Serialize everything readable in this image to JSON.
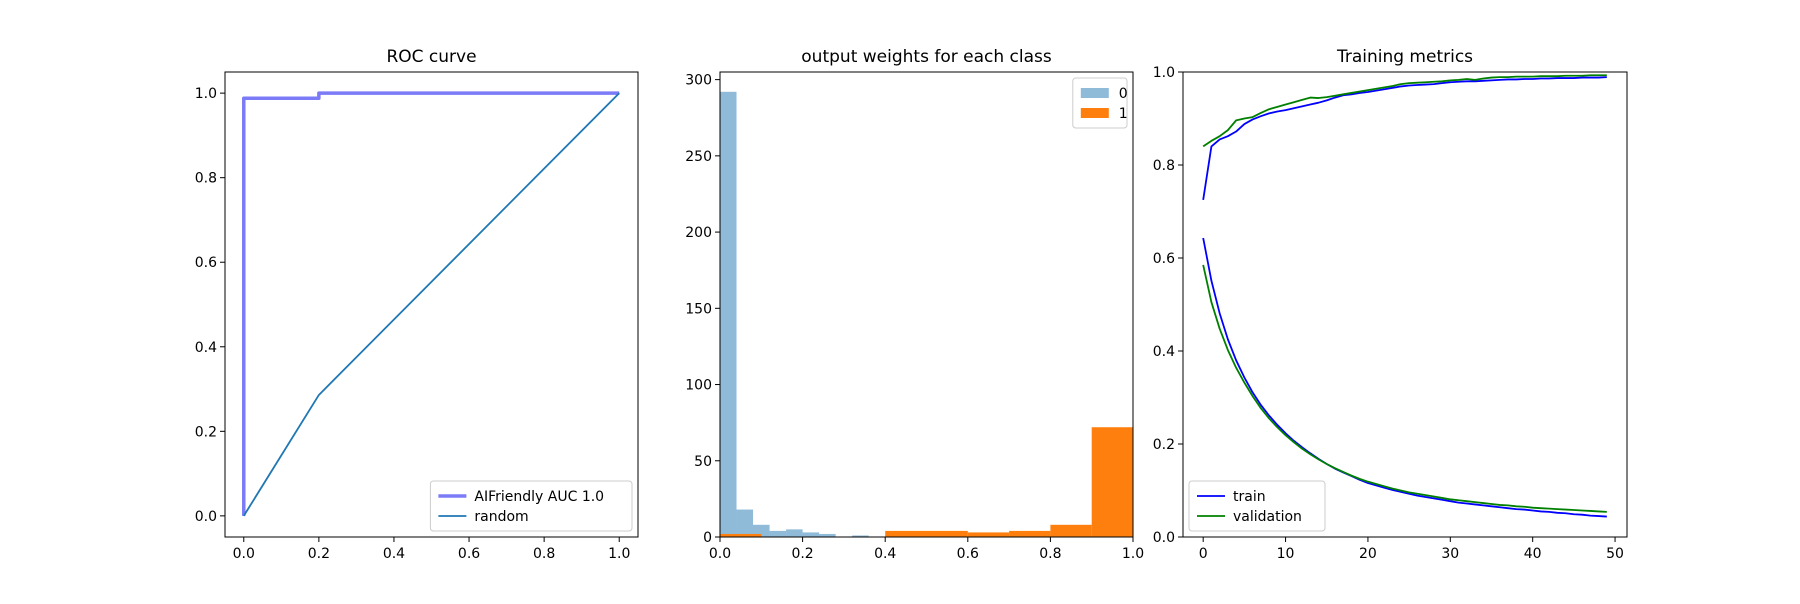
{
  "chart_data": [
    {
      "type": "line",
      "title": "ROC curve",
      "xlabel": "",
      "ylabel": "",
      "xlim": [
        -0.05,
        1.05
      ],
      "ylim": [
        -0.05,
        1.05
      ],
      "xticks": [
        0.0,
        0.2,
        0.4,
        0.6,
        0.8,
        1.0
      ],
      "yticks": [
        0.0,
        0.2,
        0.4,
        0.6,
        0.8,
        1.0
      ],
      "tick_labels_x": [
        "0.0",
        "0.2",
        "0.4",
        "0.6",
        "0.8",
        "1.0"
      ],
      "tick_labels_y": [
        "0.0",
        "0.2",
        "0.4",
        "0.6",
        "0.8",
        "1.0"
      ],
      "grid": false,
      "legend": "lower right",
      "series": [
        {
          "name": "AIFriendly AUC 1.0",
          "color": "#7b7bf7",
          "x": [
            0.0,
            0.0,
            0.0,
            0.2,
            0.2,
            1.0
          ],
          "y": [
            0.0,
            0.988,
            0.988,
            0.988,
            1.0,
            1.0
          ]
        },
        {
          "name": "random",
          "color": "#1f77b4",
          "x": [
            0.0,
            0.2,
            1.0
          ],
          "y": [
            0.0,
            0.286,
            1.0
          ]
        }
      ]
    },
    {
      "type": "bar",
      "title": "output weights for each class",
      "xlabel": "",
      "ylabel": "",
      "xlim": [
        0.0,
        1.0
      ],
      "ylim": [
        0,
        305
      ],
      "xticks": [
        0.0,
        0.2,
        0.4,
        0.6,
        0.8,
        1.0
      ],
      "yticks": [
        0,
        50,
        100,
        150,
        200,
        250,
        300
      ],
      "tick_labels_x": [
        "0.0",
        "0.2",
        "0.4",
        "0.6",
        "0.8",
        "1.0"
      ],
      "tick_labels_y": [
        "0",
        "50",
        "100",
        "150",
        "200",
        "250",
        "300"
      ],
      "grid": false,
      "legend": "upper right",
      "series": [
        {
          "name": "0",
          "color": "#1f77b4",
          "alpha": 0.5,
          "bin_edges": [
            0.0,
            0.04,
            0.08,
            0.12,
            0.16,
            0.2,
            0.24,
            0.28,
            0.32,
            0.36,
            0.4
          ],
          "counts": [
            292,
            18,
            8,
            4,
            5,
            3,
            2,
            0,
            1,
            0
          ]
        },
        {
          "name": "1",
          "color": "#ff7f0e",
          "alpha": 1.0,
          "bin_edges": [
            0.0,
            0.1,
            0.2,
            0.3,
            0.4,
            0.5,
            0.6,
            0.7,
            0.8,
            0.9,
            1.0
          ],
          "counts": [
            2,
            0,
            0,
            0,
            4,
            4,
            3,
            4,
            8,
            72
          ]
        }
      ]
    },
    {
      "type": "line",
      "title": "Training metrics",
      "xlabel": "",
      "ylabel": "",
      "xlim": [
        -2.45,
        51.45
      ],
      "ylim": [
        0.0,
        1.0
      ],
      "xticks": [
        0,
        10,
        20,
        30,
        40,
        50
      ],
      "yticks": [
        0.0,
        0.2,
        0.4,
        0.6,
        0.8,
        1.0
      ],
      "tick_labels_x": [
        "0",
        "10",
        "20",
        "30",
        "40",
        "50"
      ],
      "tick_labels_y": [
        "0.0",
        "0.2",
        "0.4",
        "0.6",
        "0.8",
        "1.0"
      ],
      "grid": false,
      "legend": "lower left",
      "legend_entries": [
        {
          "name": "train",
          "color": "#0000ff"
        },
        {
          "name": "validation",
          "color": "#008000"
        }
      ],
      "series": [
        {
          "name": "train",
          "color": "#0000ff",
          "x": [
            0,
            1,
            2,
            3,
            4,
            5,
            6,
            7,
            8,
            9,
            10,
            11,
            12,
            13,
            14,
            15,
            16,
            17,
            18,
            19,
            20,
            21,
            22,
            23,
            24,
            25,
            26,
            27,
            28,
            29,
            30,
            31,
            32,
            33,
            34,
            35,
            36,
            37,
            38,
            39,
            40,
            41,
            42,
            43,
            44,
            45,
            46,
            47,
            48,
            49
          ],
          "y": [
            0.725,
            0.84,
            0.855,
            0.862,
            0.872,
            0.888,
            0.898,
            0.905,
            0.911,
            0.915,
            0.918,
            0.922,
            0.926,
            0.93,
            0.934,
            0.939,
            0.945,
            0.95,
            0.952,
            0.955,
            0.957,
            0.96,
            0.963,
            0.966,
            0.969,
            0.971,
            0.972,
            0.973,
            0.974,
            0.976,
            0.978,
            0.979,
            0.98,
            0.98,
            0.981,
            0.982,
            0.983,
            0.984,
            0.984,
            0.985,
            0.985,
            0.986,
            0.986,
            0.987,
            0.987,
            0.987,
            0.988,
            0.988,
            0.988,
            0.989
          ]
        },
        {
          "name": "validation",
          "color": "#008000",
          "x": [
            0,
            1,
            2,
            3,
            4,
            5,
            6,
            7,
            8,
            9,
            10,
            11,
            12,
            13,
            14,
            15,
            16,
            17,
            18,
            19,
            20,
            21,
            22,
            23,
            24,
            25,
            26,
            27,
            28,
            29,
            30,
            31,
            32,
            33,
            34,
            35,
            36,
            37,
            38,
            39,
            40,
            41,
            42,
            43,
            44,
            45,
            46,
            47,
            48,
            49
          ],
          "y": [
            0.84,
            0.852,
            0.862,
            0.875,
            0.896,
            0.9,
            0.903,
            0.912,
            0.92,
            0.925,
            0.93,
            0.935,
            0.94,
            0.945,
            0.944,
            0.946,
            0.949,
            0.952,
            0.955,
            0.958,
            0.961,
            0.964,
            0.967,
            0.97,
            0.974,
            0.976,
            0.977,
            0.978,
            0.979,
            0.98,
            0.982,
            0.983,
            0.985,
            0.983,
            0.986,
            0.988,
            0.989,
            0.989,
            0.99,
            0.99,
            0.99,
            0.991,
            0.991,
            0.991,
            0.992,
            0.992,
            0.992,
            0.993,
            0.993,
            0.993
          ]
        },
        {
          "name": "train",
          "color": "#0000ff",
          "x": [
            0,
            1,
            2,
            3,
            4,
            5,
            6,
            7,
            8,
            9,
            10,
            11,
            12,
            13,
            14,
            15,
            16,
            17,
            18,
            19,
            20,
            21,
            22,
            23,
            24,
            25,
            26,
            27,
            28,
            29,
            30,
            31,
            32,
            33,
            34,
            35,
            36,
            37,
            38,
            39,
            40,
            41,
            42,
            43,
            44,
            45,
            46,
            47,
            48,
            49
          ],
          "y": [
            0.643,
            0.551,
            0.481,
            0.425,
            0.38,
            0.343,
            0.311,
            0.284,
            0.261,
            0.241,
            0.223,
            0.207,
            0.193,
            0.18,
            0.168,
            0.157,
            0.147,
            0.139,
            0.131,
            0.123,
            0.116,
            0.111,
            0.106,
            0.101,
            0.097,
            0.093,
            0.089,
            0.086,
            0.083,
            0.08,
            0.077,
            0.074,
            0.072,
            0.07,
            0.068,
            0.066,
            0.064,
            0.062,
            0.06,
            0.059,
            0.057,
            0.055,
            0.054,
            0.052,
            0.051,
            0.049,
            0.048,
            0.046,
            0.045,
            0.044
          ]
        },
        {
          "name": "validation",
          "color": "#008000",
          "x": [
            0,
            1,
            2,
            3,
            4,
            5,
            6,
            7,
            8,
            9,
            10,
            11,
            12,
            13,
            14,
            15,
            16,
            17,
            18,
            19,
            20,
            21,
            22,
            23,
            24,
            25,
            26,
            27,
            28,
            29,
            30,
            31,
            32,
            33,
            34,
            35,
            36,
            37,
            38,
            39,
            40,
            41,
            42,
            43,
            44,
            45,
            46,
            47,
            48,
            49
          ],
          "y": [
            0.585,
            0.505,
            0.448,
            0.402,
            0.364,
            0.332,
            0.303,
            0.277,
            0.255,
            0.236,
            0.219,
            0.204,
            0.19,
            0.178,
            0.167,
            0.157,
            0.148,
            0.14,
            0.132,
            0.125,
            0.119,
            0.114,
            0.109,
            0.104,
            0.1,
            0.096,
            0.093,
            0.09,
            0.087,
            0.084,
            0.081,
            0.079,
            0.077,
            0.075,
            0.073,
            0.071,
            0.069,
            0.068,
            0.066,
            0.065,
            0.063,
            0.062,
            0.061,
            0.06,
            0.059,
            0.058,
            0.057,
            0.056,
            0.055,
            0.054
          ]
        }
      ]
    }
  ]
}
